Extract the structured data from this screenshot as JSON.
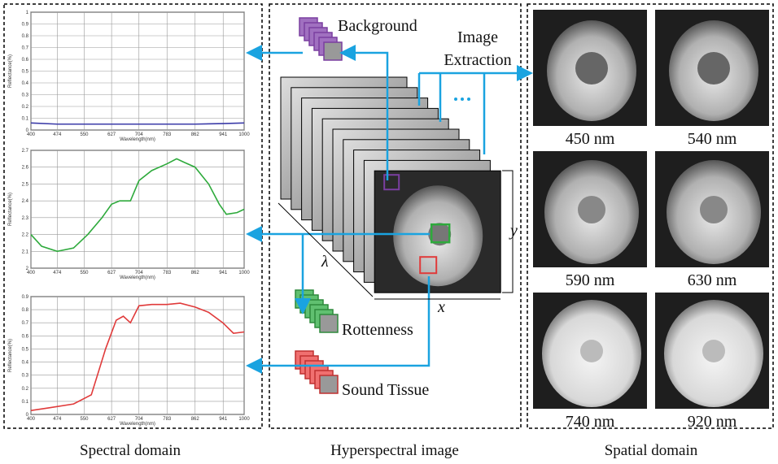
{
  "spectral_domain": {
    "caption": "Spectral domain",
    "x_label": "Wavelength(nm)",
    "y_label": "Reflectance(%)",
    "plots": [
      {
        "color": "#3b3ba8",
        "xlim": [
          400,
          1000
        ],
        "xticks": [
          400,
          474,
          550,
          627,
          704,
          783,
          862,
          941,
          1000
        ],
        "ylim": [
          0,
          1
        ],
        "yticks": [
          0,
          0.1,
          0.2,
          0.3,
          0.4,
          0.5,
          0.6,
          0.7,
          0.8,
          0.9,
          1
        ],
        "x": [
          400,
          474,
          550,
          627,
          704,
          783,
          862,
          941,
          1000
        ],
        "values": [
          0.06,
          0.05,
          0.05,
          0.05,
          0.05,
          0.05,
          0.05,
          0.055,
          0.06
        ]
      },
      {
        "color": "#2eaa3c",
        "xlim": [
          400,
          1000
        ],
        "xticks": [
          400,
          474,
          550,
          627,
          704,
          783,
          862,
          941,
          1000
        ],
        "ylim": [
          2,
          2.7
        ],
        "yticks": [
          2,
          2.1,
          2.2,
          2.3,
          2.4,
          2.5,
          2.6,
          2.7
        ],
        "x": [
          400,
          430,
          474,
          520,
          560,
          600,
          627,
          650,
          680,
          704,
          740,
          783,
          810,
          830,
          862,
          900,
          930,
          950,
          980,
          1000
        ],
        "values": [
          2.2,
          2.13,
          2.1,
          2.12,
          2.2,
          2.3,
          2.38,
          2.4,
          2.4,
          2.52,
          2.58,
          2.62,
          2.65,
          2.63,
          2.6,
          2.5,
          2.38,
          2.32,
          2.33,
          2.35
        ]
      },
      {
        "color": "#e03a3a",
        "xlim": [
          400,
          1000
        ],
        "xticks": [
          400,
          474,
          550,
          627,
          704,
          783,
          862,
          941,
          1000
        ],
        "ylim": [
          0,
          0.9
        ],
        "yticks": [
          0,
          0.1,
          0.2,
          0.3,
          0.4,
          0.5,
          0.6,
          0.7,
          0.8,
          0.9
        ],
        "x": [
          400,
          450,
          520,
          570,
          610,
          640,
          660,
          680,
          704,
          740,
          783,
          820,
          862,
          900,
          940,
          970,
          1000
        ],
        "values": [
          0.03,
          0.05,
          0.08,
          0.15,
          0.5,
          0.72,
          0.75,
          0.7,
          0.83,
          0.84,
          0.84,
          0.85,
          0.82,
          0.78,
          0.7,
          0.62,
          0.63
        ]
      }
    ]
  },
  "hyperspectral_image": {
    "caption": "Hyperspectral image",
    "background": "Background",
    "extraction_1": "Image",
    "extraction_2": "Extraction",
    "rottenness": "Rottenness",
    "sound_tissue": "Sound Tissue",
    "axis_x": "x",
    "axis_y": "y",
    "axis_lambda": "λ"
  },
  "spatial_domain": {
    "caption": "Spatial domain",
    "images": [
      {
        "label": "450 nm"
      },
      {
        "label": "540 nm"
      },
      {
        "label": "590 nm"
      },
      {
        "label": "630 nm"
      },
      {
        "label": "740 nm"
      },
      {
        "label": "920 nm"
      }
    ]
  }
}
